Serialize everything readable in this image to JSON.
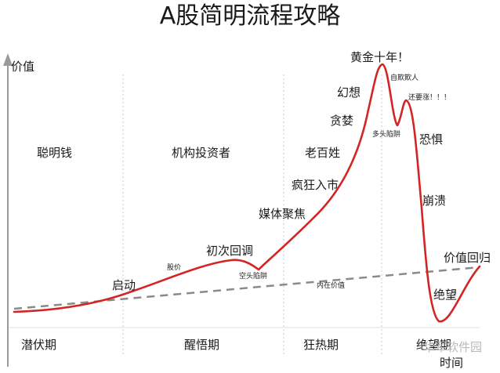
{
  "title": "A股简明流程攻略",
  "axes": {
    "y_label": "价值",
    "x_label": "时间"
  },
  "stages_top": [
    "聪明钱",
    "机构投资者",
    "老百姓"
  ],
  "stages_bottom": [
    "潜伏期",
    "醒悟期",
    "狂热期",
    "绝望期"
  ],
  "annotations": {
    "start": "启动",
    "stock_price": "股价",
    "first_pullback": "初次回调",
    "bear_trap": "空头陷阱",
    "intrinsic_value": "内在价值",
    "media_focus": "媒体聚焦",
    "mania_entry": "疯狂入市",
    "greed": "贪婪",
    "illusion": "幻想",
    "golden_decade": "黄金十年！",
    "self_deception": "自欺欺人",
    "bull_trap": "多头陷阱",
    "still_rising": "还要涨！！！",
    "fear": "恐惧",
    "collapse": "崩溃",
    "despair": "绝望",
    "value_return": "价值回归"
  },
  "watermark": "华军软件园"
}
